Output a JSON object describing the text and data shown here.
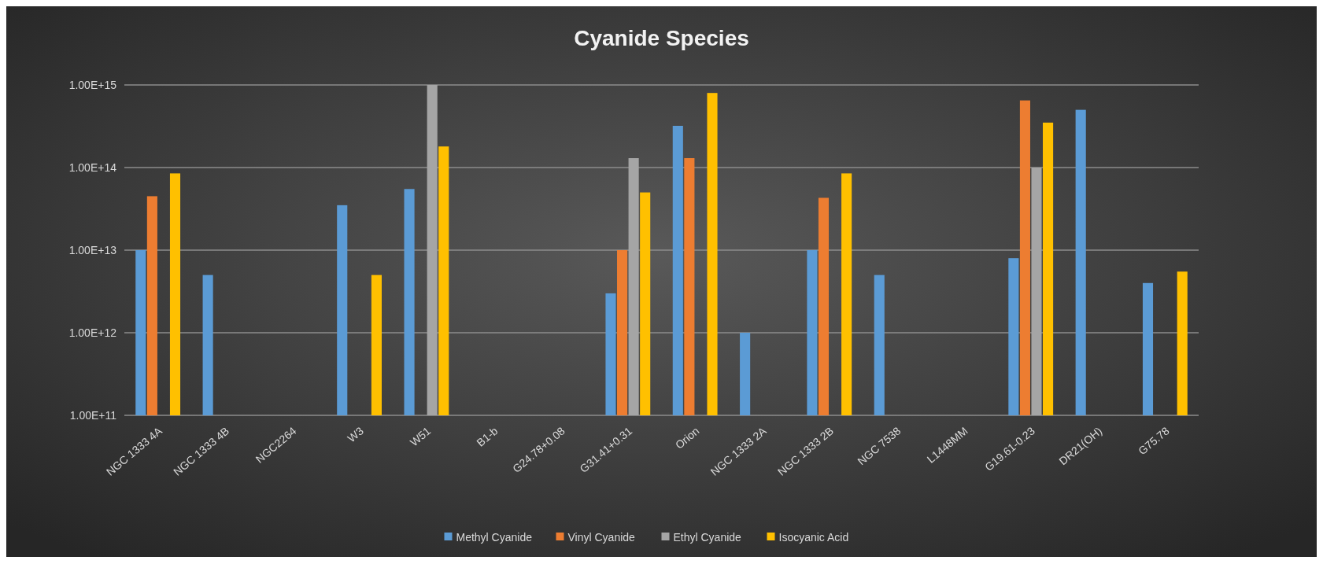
{
  "chart_data": {
    "type": "bar",
    "title": "Cyanide Species",
    "categories": [
      "NGC 1333 4A",
      "NGC 1333 4B",
      "NGC2264",
      "W3",
      "W51",
      "B1-b",
      "G24.78+0.08",
      "G31.41+0.31",
      "Orion",
      "NGC 1333 2A",
      "NGC 1333 2B",
      "NGC 7538",
      "L1448MM",
      "G19.61-0.23",
      "DR21(OH)",
      "G75.78"
    ],
    "series": [
      {
        "name": "Methyl Cyanide",
        "color": "#5b9bd5",
        "values": [
          10000000000000.0,
          5000000000000.0,
          null,
          35000000000000.0,
          55000000000000.0,
          null,
          null,
          3000000000000.0,
          320000000000000.0,
          1000000000000.0,
          10000000000000.0,
          5000000000000.0,
          null,
          8000000000000.0,
          500000000000000.0,
          4000000000000.0
        ]
      },
      {
        "name": "Vinyl Cyanide",
        "color": "#ed7d31",
        "values": [
          45000000000000.0,
          null,
          null,
          null,
          null,
          null,
          null,
          10000000000000.0,
          130000000000000.0,
          null,
          43000000000000.0,
          null,
          null,
          650000000000000.0,
          null,
          null
        ]
      },
      {
        "name": "Ethyl Cyanide",
        "color": "#a5a5a5",
        "values": [
          null,
          null,
          null,
          null,
          1000000000000000.0,
          null,
          null,
          130000000000000.0,
          null,
          null,
          null,
          null,
          null,
          100000000000000.0,
          null,
          null
        ]
      },
      {
        "name": "Isocyanic Acid",
        "color": "#ffc000",
        "values": [
          85000000000000.0,
          null,
          null,
          5000000000000.0,
          180000000000000.0,
          null,
          null,
          50000000000000.0,
          800000000000000.0,
          null,
          85000000000000.0,
          null,
          null,
          350000000000000.0,
          null,
          5500000000000.0
        ]
      }
    ],
    "log": true,
    "ylim": [
      100000000000.0,
      1000000000000000.0
    ],
    "yticks": [
      {
        "value": 100000000000.0,
        "label": "1.00E+11"
      },
      {
        "value": 1000000000000.0,
        "label": "1.00E+12"
      },
      {
        "value": 10000000000000.0,
        "label": "1.00E+13"
      },
      {
        "value": 100000000000000.0,
        "label": "1.00E+14"
      },
      {
        "value": 1000000000000000.0,
        "label": "1.00E+15"
      }
    ],
    "grid": "y",
    "legend": "bottom"
  }
}
